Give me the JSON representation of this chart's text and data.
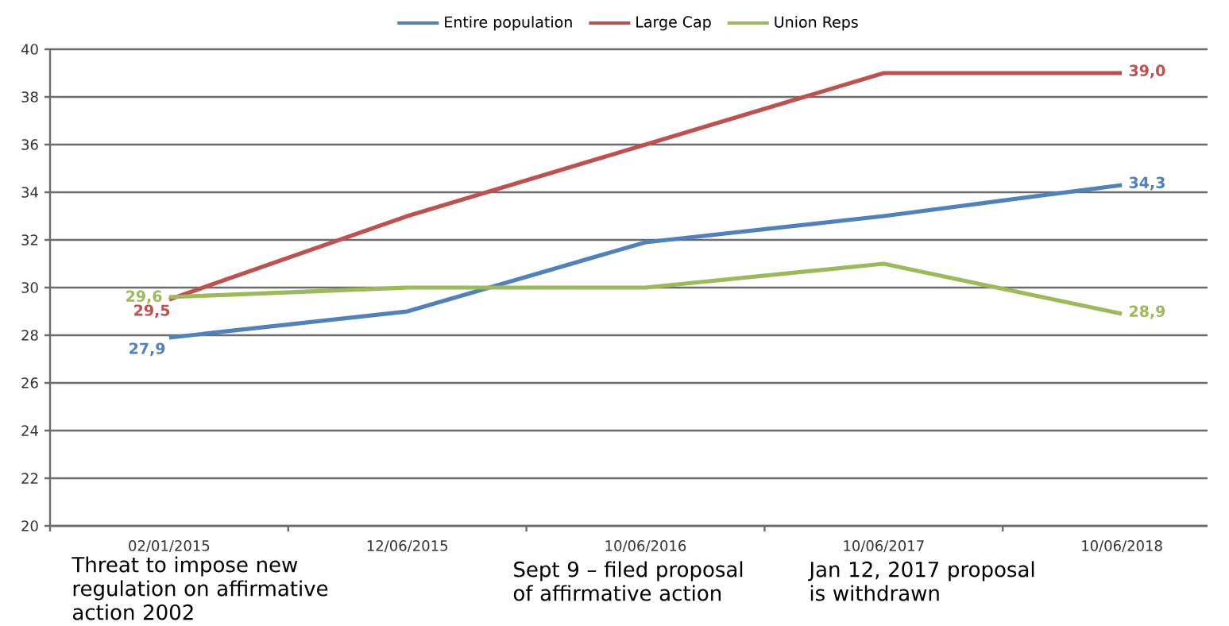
{
  "chart_data": {
    "type": "line",
    "categories": [
      "02/01/2015",
      "12/06/2015",
      "10/06/2016",
      "10/06/2017",
      "10/06/2018"
    ],
    "series": [
      {
        "name": "Entire population",
        "color": "#4f81bd",
        "values": [
          27.9,
          29.0,
          31.9,
          33.0,
          34.3
        ],
        "value_labels": [
          "27,9",
          null,
          null,
          null,
          "34,3"
        ]
      },
      {
        "name": "Large Cap",
        "color": "#c0504d",
        "values": [
          29.5,
          33.0,
          36.0,
          39.0,
          39.0
        ],
        "value_labels": [
          "29,5",
          null,
          null,
          null,
          "39,0"
        ]
      },
      {
        "name": "Union Reps",
        "color": "#9bbb59",
        "values": [
          29.6,
          30.0,
          30.0,
          31.0,
          28.9
        ],
        "value_labels": [
          "29,6",
          null,
          null,
          null,
          "28,9"
        ]
      }
    ],
    "ylim": [
      20,
      40
    ],
    "yticks": [
      20,
      22,
      24,
      26,
      28,
      30,
      32,
      34,
      36,
      38,
      40
    ],
    "grid": "y",
    "legend": "top",
    "marker": "none",
    "line_style": "solid",
    "annotations": [
      "Threat to impose new regulation on affirmative action 2002",
      "Sept 9 – filed proposal of affirmative action",
      "Jan 12, 2017 proposal is withdrawn"
    ]
  }
}
